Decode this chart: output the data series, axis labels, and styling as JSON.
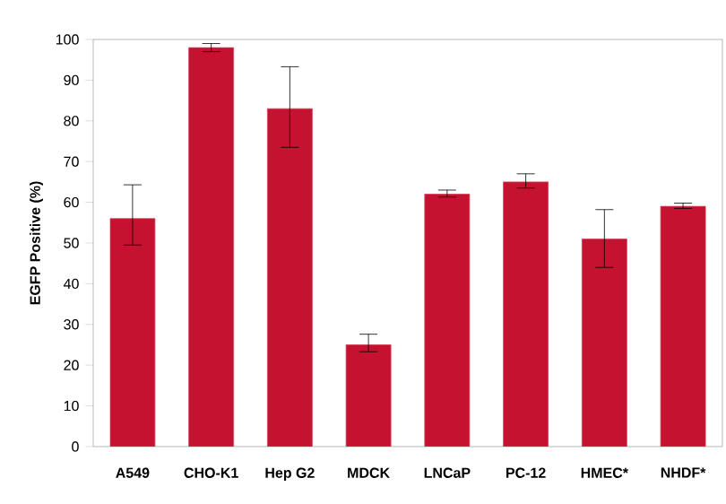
{
  "chart_data": {
    "type": "bar",
    "ylabel": "EGFP Positive (%)",
    "categories": [
      "A549",
      "CHO-K1",
      "Hep G2",
      "MDCK",
      "LNCaP",
      "PC-12",
      "HMEC*",
      "NHDF*"
    ],
    "values": [
      56,
      98,
      83,
      25,
      62,
      65,
      51,
      59
    ],
    "errors": [
      [
        49.5,
        64.3
      ],
      [
        97,
        99
      ],
      [
        73.5,
        93.3
      ],
      [
        23.3,
        27.6
      ],
      [
        61.3,
        63
      ],
      [
        63.5,
        67
      ],
      [
        44,
        58.2
      ],
      [
        58.5,
        59.8
      ]
    ],
    "color": "#c41230",
    "ylim": [
      0,
      100
    ],
    "yticks": [
      0,
      10,
      20,
      30,
      40,
      50,
      60,
      70,
      80,
      90,
      100
    ]
  }
}
